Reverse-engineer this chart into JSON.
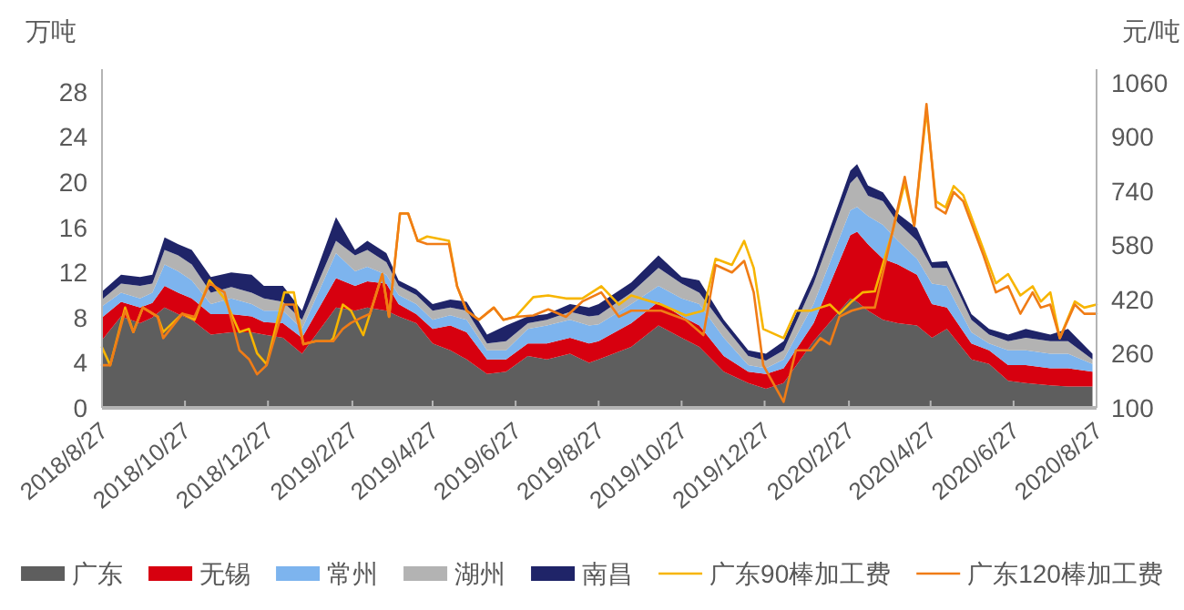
{
  "chart_data": {
    "type": "area",
    "stacked": true,
    "ylabel": "万吨",
    "y2label": "元/吨",
    "x": [
      "2018-08-27",
      "2018-09-10",
      "2018-09-24",
      "2018-10-03",
      "2018-10-12",
      "2018-10-22",
      "2018-11-01",
      "2018-11-15",
      "2018-11-30",
      "2018-12-15",
      "2018-12-24",
      "2019-01-07",
      "2019-01-21",
      "2019-02-15",
      "2019-03-01",
      "2019-03-10",
      "2019-03-24",
      "2019-04-02",
      "2019-04-15",
      "2019-04-27",
      "2019-05-10",
      "2019-05-22",
      "2019-06-06",
      "2019-06-20",
      "2019-07-06",
      "2019-07-20",
      "2019-08-06",
      "2019-08-20",
      "2019-08-27",
      "2019-09-20",
      "2019-10-10",
      "2019-10-27",
      "2019-11-09",
      "2019-11-27",
      "2019-12-15",
      "2019-12-28",
      "2020-01-10",
      "2020-02-01",
      "2020-02-28",
      "2020-03-04",
      "2020-03-12",
      "2020-03-23",
      "2020-04-03",
      "2020-04-17",
      "2020-04-28",
      "2020-05-09",
      "2020-05-27",
      "2020-06-09",
      "2020-06-23",
      "2020-07-06",
      "2020-07-24",
      "2020-08-06",
      "2020-08-24"
    ],
    "series": [
      {
        "name": "广东",
        "color": "#5e5e5e",
        "values": [
          6.0,
          8.1,
          7.5,
          8.0,
          8.9,
          8.3,
          7.8,
          6.5,
          6.7,
          6.7,
          6.5,
          6.2,
          4.8,
          8.9,
          8.6,
          8.9,
          8.6,
          8.1,
          7.5,
          5.7,
          5.1,
          4.3,
          3.0,
          3.2,
          4.6,
          4.3,
          4.8,
          4.0,
          4.3,
          5.4,
          7.3,
          6.2,
          5.4,
          3.2,
          2.2,
          1.7,
          2.2,
          5.9,
          9.7,
          9.4,
          8.6,
          7.8,
          7.5,
          7.3,
          6.2,
          7.0,
          4.3,
          3.9,
          2.4,
          2.2,
          2.0,
          1.9,
          1.9
        ]
      },
      {
        "name": "无锡",
        "color": "#d7000f",
        "values": [
          2.0,
          1.3,
          1.4,
          1.3,
          1.9,
          1.9,
          1.9,
          1.8,
          1.6,
          1.4,
          1.1,
          1.3,
          1.4,
          2.6,
          2.2,
          2.3,
          2.4,
          1.1,
          0.8,
          1.3,
          2.2,
          2.4,
          1.3,
          1.1,
          1.1,
          1.4,
          1.4,
          1.7,
          1.6,
          2.1,
          2.1,
          1.9,
          1.9,
          1.4,
          1.0,
          1.3,
          1.3,
          1.6,
          5.6,
          6.2,
          5.9,
          5.4,
          5.2,
          4.5,
          3.0,
          1.9,
          1.4,
          1.2,
          1.4,
          1.6,
          1.5,
          1.6,
          1.3
        ]
      },
      {
        "name": "常州",
        "color": "#7db4ee",
        "values": [
          1.0,
          0.8,
          0.8,
          0.9,
          1.9,
          1.9,
          1.6,
          0.9,
          1.4,
          1.1,
          1.0,
          1.1,
          0.8,
          2.2,
          1.3,
          1.3,
          0.8,
          0.8,
          0.9,
          0.8,
          0.9,
          1.1,
          0.8,
          0.8,
          1.3,
          1.6,
          1.6,
          1.6,
          1.5,
          1.7,
          1.4,
          1.6,
          1.9,
          1.6,
          0.6,
          0.5,
          0.8,
          1.7,
          2.2,
          2.2,
          2.5,
          3.0,
          2.1,
          1.4,
          1.8,
          1.9,
          1.0,
          0.6,
          1.3,
          1.3,
          1.3,
          1.3,
          0.7
        ]
      },
      {
        "name": "湖州",
        "color": "#b3b3b3",
        "values": [
          0.6,
          0.8,
          1.1,
          0.8,
          1.3,
          1.4,
          1.4,
          1.0,
          1.0,
          1.0,
          1.1,
          0.8,
          0.8,
          1.1,
          1.4,
          1.5,
          1.1,
          0.8,
          0.8,
          0.8,
          0.7,
          0.8,
          0.6,
          0.8,
          0.5,
          0.5,
          0.7,
          0.8,
          0.8,
          1.0,
          1.6,
          1.3,
          1.0,
          1.1,
          0.8,
          0.7,
          0.8,
          1.8,
          2.4,
          2.7,
          1.8,
          2.1,
          1.6,
          1.6,
          1.4,
          1.6,
          1.1,
          0.8,
          0.8,
          1.1,
          1.1,
          1.1,
          0.4
        ]
      },
      {
        "name": "南昌",
        "color": "#1f2468",
        "values": [
          0.7,
          0.8,
          0.8,
          0.8,
          1.1,
          1.0,
          1.3,
          1.4,
          1.3,
          1.6,
          1.1,
          1.4,
          0.8,
          2.1,
          0.5,
          0.8,
          0.8,
          0.5,
          0.5,
          0.6,
          0.7,
          0.8,
          0.8,
          1.4,
          0.6,
          0.5,
          0.7,
          0.8,
          1.0,
          0.9,
          1.1,
          0.6,
          1.1,
          0.5,
          0.5,
          0.6,
          0.8,
          0.8,
          1.1,
          1.1,
          0.9,
          0.8,
          0.8,
          1.1,
          0.5,
          0.6,
          0.5,
          0.5,
          0.6,
          0.8,
          0.6,
          1.1,
          0.5
        ]
      },
      {
        "name": "广东90棒加工费",
        "type": "line",
        "axis": "y2",
        "color": "#f7b500",
        "x": [
          "2018-08-27",
          "2018-09-02",
          "2018-09-13",
          "2018-09-19",
          "2018-09-26",
          "2018-10-07",
          "2018-10-11",
          "2018-10-25",
          "2018-11-03",
          "2018-11-14",
          "2018-11-25",
          "2018-12-06",
          "2018-12-13",
          "2018-12-19",
          "2018-12-26",
          "2019-01-08",
          "2019-01-15",
          "2019-01-22",
          "2019-01-31",
          "2019-02-11",
          "2019-02-13",
          "2019-02-20",
          "2019-02-26",
          "2019-03-07",
          "2019-03-12",
          "2019-03-21",
          "2019-03-26",
          "2019-04-03",
          "2019-04-09",
          "2019-04-16",
          "2019-04-23",
          "2019-05-09",
          "2019-05-15",
          "2019-05-22",
          "2019-05-31",
          "2019-06-11",
          "2019-06-18",
          "2019-06-27",
          "2019-07-10",
          "2019-07-21",
          "2019-08-03",
          "2019-08-15",
          "2019-08-29",
          "2019-09-11",
          "2019-09-20",
          "2019-10-12",
          "2019-10-30",
          "2019-11-12",
          "2019-11-21",
          "2019-12-03",
          "2019-12-12",
          "2019-12-19",
          "2019-12-26",
          "2020-01-10",
          "2020-01-19",
          "2020-01-30",
          "2020-02-06",
          "2020-02-13",
          "2020-02-20",
          "2020-02-29",
          "2020-03-08",
          "2020-03-17",
          "2020-03-30",
          "2020-04-08",
          "2020-04-15",
          "2020-04-24",
          "2020-05-01",
          "2020-05-08",
          "2020-05-14",
          "2020-05-21",
          "2020-06-05",
          "2020-06-14",
          "2020-06-23",
          "2020-07-02",
          "2020-07-11",
          "2020-07-17",
          "2020-07-24",
          "2020-07-31",
          "2020-08-11",
          "2020-08-18",
          "2020-08-27"
        ],
        "values": [
          279,
          226,
          396,
          324,
          396,
          369,
          324,
          378,
          360,
          477,
          423,
          324,
          333,
          261,
          229,
          441,
          441,
          288,
          297,
          297,
          306,
          405,
          387,
          315,
          378,
          495,
          369,
          674,
          674,
          593,
          606,
          593,
          459,
          387,
          360,
          396,
          360,
          369,
          427,
          432,
          423,
          423,
          459,
          405,
          432,
          405,
          373,
          387,
          540,
          522,
          593,
          513,
          333,
          306,
          387,
          387,
          396,
          405,
          378,
          414,
          441,
          444,
          620,
          764,
          638,
          979,
          710,
          692,
          755,
          728,
          566,
          468,
          495,
          432,
          459,
          414,
          441,
          306,
          414,
          396,
          405
        ]
      },
      {
        "name": "广东120棒加工费",
        "type": "line",
        "axis": "y2",
        "color": "#f07c16",
        "x": [
          "2018-08-27",
          "2018-09-02",
          "2018-09-13",
          "2018-09-19",
          "2018-09-26",
          "2018-10-07",
          "2018-10-11",
          "2018-10-25",
          "2018-11-03",
          "2018-11-14",
          "2018-11-25",
          "2018-12-06",
          "2018-12-13",
          "2018-12-19",
          "2018-12-26",
          "2019-01-08",
          "2019-01-15",
          "2019-01-22",
          "2019-01-31",
          "2019-02-11",
          "2019-02-13",
          "2019-02-20",
          "2019-02-26",
          "2019-03-07",
          "2019-03-12",
          "2019-03-21",
          "2019-03-26",
          "2019-04-03",
          "2019-04-09",
          "2019-04-16",
          "2019-04-23",
          "2019-05-09",
          "2019-05-15",
          "2019-05-22",
          "2019-05-31",
          "2019-06-11",
          "2019-06-18",
          "2019-06-27",
          "2019-07-10",
          "2019-07-21",
          "2019-08-03",
          "2019-08-15",
          "2019-08-29",
          "2019-09-11",
          "2019-09-20",
          "2019-10-12",
          "2019-10-30",
          "2019-11-12",
          "2019-11-21",
          "2019-12-03",
          "2019-12-12",
          "2019-12-19",
          "2019-12-26",
          "2020-01-10",
          "2020-01-19",
          "2020-01-30",
          "2020-02-06",
          "2020-02-13",
          "2020-02-20",
          "2020-02-29",
          "2020-03-08",
          "2020-03-17",
          "2020-03-30",
          "2020-04-08",
          "2020-04-15",
          "2020-04-24",
          "2020-05-01",
          "2020-05-08",
          "2020-05-14",
          "2020-05-21",
          "2020-06-05",
          "2020-06-14",
          "2020-06-23",
          "2020-07-02",
          "2020-07-11",
          "2020-07-17",
          "2020-07-24",
          "2020-07-31",
          "2020-08-11",
          "2020-08-18",
          "2020-08-27"
        ],
        "values": [
          226,
          226,
          387,
          324,
          396,
          369,
          306,
          378,
          369,
          468,
          441,
          270,
          244,
          199,
          226,
          405,
          405,
          288,
          297,
          297,
          297,
          333,
          351,
          369,
          378,
          495,
          369,
          674,
          674,
          593,
          584,
          584,
          459,
          387,
          360,
          396,
          360,
          369,
          373,
          391,
          369,
          414,
          441,
          369,
          387,
          387,
          360,
          315,
          522,
          500,
          534,
          441,
          226,
          118,
          270,
          270,
          306,
          288,
          369,
          387,
          396,
          396,
          620,
          782,
          638,
          997,
          692,
          674,
          737,
          710,
          549,
          441,
          459,
          378,
          441,
          396,
          405,
          306,
          405,
          378,
          378
        ]
      }
    ],
    "xlim": [
      "2018-08-27",
      "2020-08-27"
    ],
    "xticks": [
      {
        "value": "2018-08-27",
        "label": "2018/8/27"
      },
      {
        "value": "2018-10-27",
        "label": "2018/10/27"
      },
      {
        "value": "2018-12-27",
        "label": "2018/12/27"
      },
      {
        "value": "2019-02-27",
        "label": "2019/2/27"
      },
      {
        "value": "2019-04-27",
        "label": "2019/4/27"
      },
      {
        "value": "2019-06-27",
        "label": "2019/6/27"
      },
      {
        "value": "2019-08-27",
        "label": "2019/8/27"
      },
      {
        "value": "2019-10-27",
        "label": "2019/10/27"
      },
      {
        "value": "2019-12-27",
        "label": "2019/12/27"
      },
      {
        "value": "2020-02-27",
        "label": "2020/2/27"
      },
      {
        "value": "2020-04-27",
        "label": "2020/4/27"
      },
      {
        "value": "2020-06-27",
        "label": "2020/6/27"
      },
      {
        "value": "2020-08-27",
        "label": "2020/8/27"
      }
    ],
    "ylim": [
      0,
      30
    ],
    "yticks": [
      0,
      4,
      8,
      12,
      16,
      20,
      24,
      28
    ],
    "y2lim": [
      100,
      1100
    ],
    "y2ticks": [
      100,
      260,
      420,
      580,
      740,
      900,
      1060
    ],
    "legend": "bottom"
  }
}
